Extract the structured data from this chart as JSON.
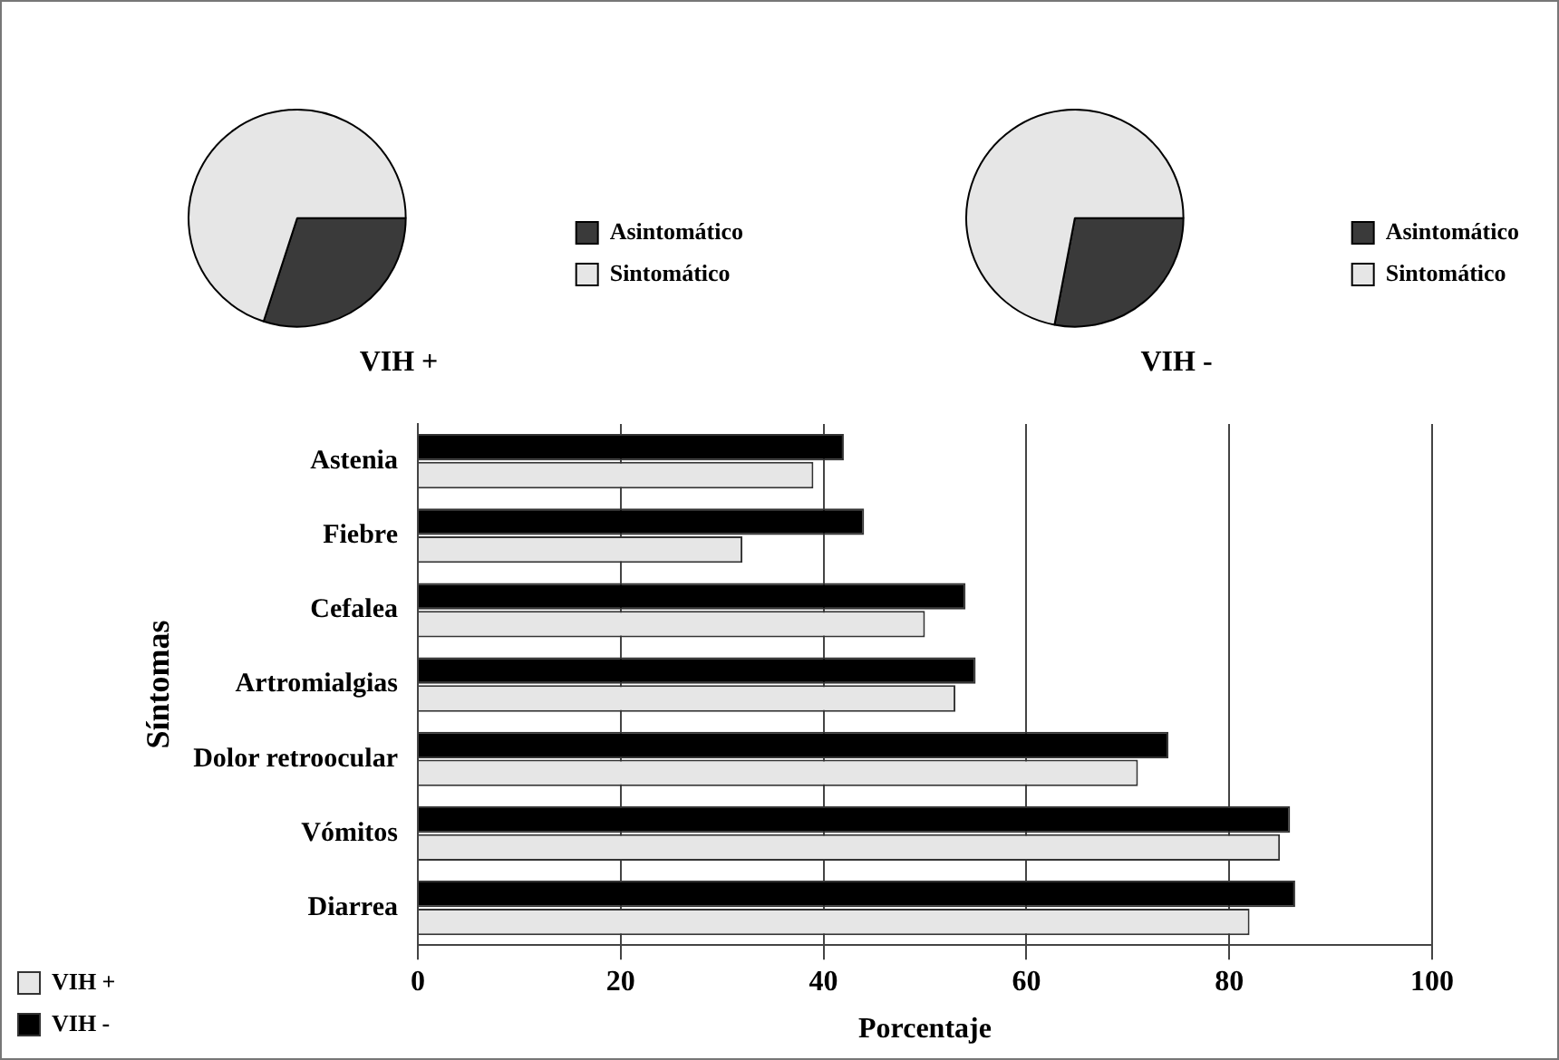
{
  "chart_data": [
    {
      "type": "pie",
      "title": "VIH +",
      "categories": [
        "Asintomático",
        "Sintomático"
      ],
      "values": [
        30,
        70
      ],
      "colors": [
        "#3a3a3a",
        "#e6e6e6"
      ],
      "legend": "right"
    },
    {
      "type": "pie",
      "title": "VIH -",
      "categories": [
        "Asintomático",
        "Sintomático"
      ],
      "values": [
        28,
        72
      ],
      "colors": [
        "#3a3a3a",
        "#e6e6e6"
      ],
      "legend": "right"
    },
    {
      "type": "bar",
      "orientation": "horizontal",
      "xlabel": "Porcentaje",
      "ylabel": "Síntomas",
      "categories": [
        "Astenia",
        "Fiebre",
        "Cefalea",
        "Artromialgias",
        "Dolor retroocular",
        "Vómitos",
        "Diarrea"
      ],
      "series": [
        {
          "name": "VIH -",
          "color": "#000000",
          "values": [
            42,
            44,
            54,
            55,
            74,
            86,
            86.5
          ]
        },
        {
          "name": "VIH +",
          "color": "#e6e6e6",
          "values": [
            39,
            32,
            50,
            53,
            71,
            85,
            82
          ]
        }
      ],
      "xlim": [
        0,
        100
      ],
      "xticks": [
        0,
        20,
        40,
        60,
        80,
        100
      ],
      "grid": "x",
      "legend": "bottom left"
    }
  ]
}
